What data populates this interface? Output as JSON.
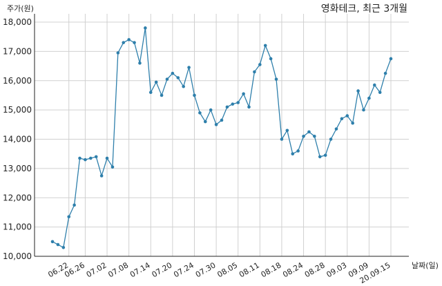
{
  "chart_data": {
    "type": "line",
    "title": "영화테크, 최근 3개월",
    "ylabel": "주가(원)",
    "xlabel": "날짜(일)",
    "ylim": [
      10000,
      18000
    ],
    "yticks": [
      10000,
      11000,
      12000,
      13000,
      14000,
      15000,
      16000,
      17000,
      18000
    ],
    "ytick_labels": [
      "10,000",
      "11,000",
      "12,000",
      "13,000",
      "14,000",
      "15,000",
      "16,000",
      "17,000",
      "18,000"
    ],
    "xtick_labels": [
      "06.22",
      "06.26",
      "07.02",
      "07.08",
      "07.14",
      "07.20",
      "07.24",
      "07.30",
      "08.05",
      "08.11",
      "08.18",
      "08.24",
      "08.28",
      "09.03",
      "09.09",
      "20.09.15"
    ],
    "xtick_index": [
      3,
      6,
      10,
      14,
      18,
      22,
      26,
      30,
      34,
      38,
      42,
      46,
      50,
      54,
      58,
      62
    ],
    "grid": true,
    "color": "#2e7fab",
    "series": [
      {
        "values": [
          10500,
          10400,
          10300,
          11350,
          11750,
          13350,
          13300,
          13350,
          13400,
          12750,
          13350,
          13050,
          16950,
          17300,
          17400,
          17300,
          16600,
          17800,
          15600,
          15950,
          15500,
          16050,
          16250,
          16100,
          15800,
          16450,
          15500,
          14900,
          14600,
          15000,
          14500,
          14650,
          15100,
          15200,
          15250,
          15550,
          15100,
          16300,
          16550,
          17200,
          16750,
          16050,
          14000,
          14300,
          13500,
          13600,
          14100,
          14250,
          14100,
          13400,
          13450,
          14000,
          14350,
          14700,
          14800,
          14550,
          15650,
          15000,
          15400,
          15850,
          15600,
          16250,
          16750
        ]
      }
    ]
  }
}
